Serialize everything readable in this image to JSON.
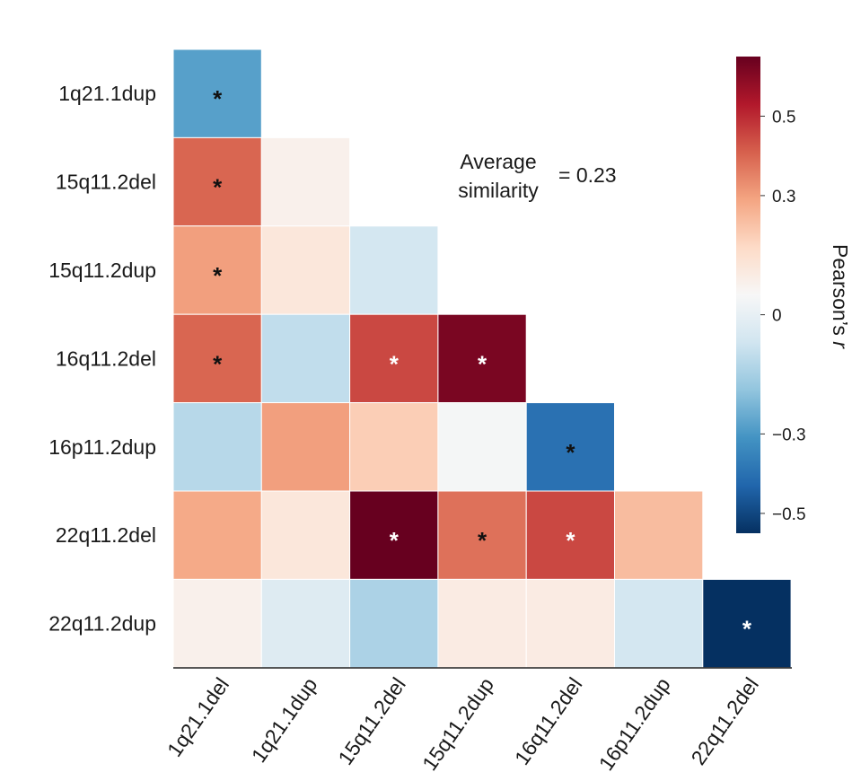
{
  "chart_data": {
    "type": "heatmap",
    "layout": "lower-triangle",
    "row_labels": [
      "1q21.1dup",
      "15q11.2del",
      "15q11.2dup",
      "16q11.2del",
      "16p11.2dup",
      "22q11.2del",
      "22q11.2dup"
    ],
    "col_labels": [
      "1q21.1del",
      "1q21.1dup",
      "15q11.2del",
      "15q11.2dup",
      "16q11.2del",
      "16p11.2dup",
      "22q11.2del"
    ],
    "values": [
      [
        -0.28,
        null,
        null,
        null,
        null,
        null,
        null
      ],
      [
        0.4,
        0.08,
        null,
        null,
        null,
        null,
        null
      ],
      [
        0.3,
        0.12,
        -0.06,
        null,
        null,
        null,
        null
      ],
      [
        0.4,
        -0.1,
        0.45,
        0.62,
        null,
        null,
        null
      ],
      [
        -0.12,
        0.3,
        0.2,
        0.04,
        -0.4,
        null,
        null
      ],
      [
        0.28,
        0.12,
        0.65,
        0.38,
        0.45,
        0.24,
        null
      ],
      [
        0.08,
        -0.03,
        -0.14,
        0.1,
        0.1,
        -0.06,
        -0.55
      ]
    ],
    "significant": [
      [
        true,
        false,
        false,
        false,
        false,
        false,
        false
      ],
      [
        true,
        false,
        false,
        false,
        false,
        false,
        false
      ],
      [
        true,
        false,
        false,
        false,
        false,
        false,
        false
      ],
      [
        true,
        false,
        true,
        true,
        false,
        false,
        false
      ],
      [
        false,
        false,
        false,
        false,
        true,
        false,
        false
      ],
      [
        false,
        false,
        true,
        true,
        true,
        false,
        false
      ],
      [
        false,
        false,
        false,
        false,
        false,
        false,
        true
      ]
    ],
    "star_color": [
      [
        "black",
        null,
        null,
        null,
        null,
        null,
        null
      ],
      [
        "black",
        null,
        null,
        null,
        null,
        null,
        null
      ],
      [
        "black",
        null,
        null,
        null,
        null,
        null,
        null
      ],
      [
        "black",
        null,
        "white",
        "white",
        null,
        null,
        null
      ],
      [
        null,
        null,
        null,
        null,
        "black",
        null,
        null
      ],
      [
        null,
        null,
        "white",
        "black",
        "white",
        null,
        null
      ],
      [
        null,
        null,
        null,
        null,
        null,
        null,
        "white"
      ]
    ],
    "star_symbol": "*",
    "annotation": {
      "line1": "Average",
      "line2": "similarity",
      "value": "= 0.23"
    },
    "colorbar": {
      "title": "Pearson’s r",
      "title_main": "Pearson’s",
      "title_italic": "r",
      "range": [
        -0.55,
        0.65
      ],
      "ticks": [
        0.5,
        0.3,
        0,
        -0.3,
        -0.5
      ],
      "tick_labels": [
        "0.5",
        "0.3",
        "0",
        "−0.3",
        "−0.5"
      ],
      "colormap": [
        "#053061",
        "#2166ac",
        "#4393c3",
        "#92c5de",
        "#d1e5f0",
        "#f7f7f7",
        "#fddbc7",
        "#f4a582",
        "#d6604d",
        "#b2182b",
        "#67001f"
      ]
    }
  }
}
